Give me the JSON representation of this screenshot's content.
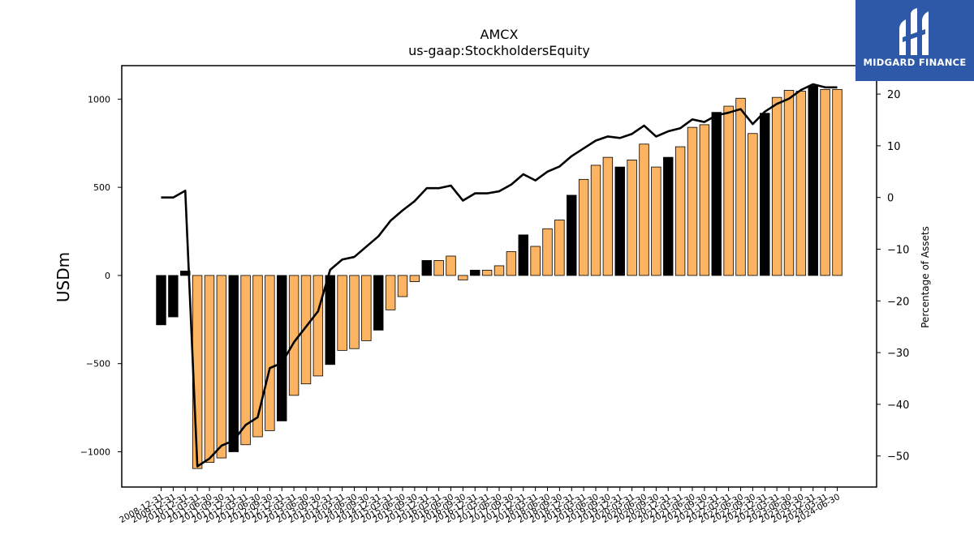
{
  "chart_data": {
    "type": "bar",
    "title": "AMCX",
    "subtitle": "us-gaap:StockholdersEquity",
    "ylabel": "USDm",
    "y2label": "Percentage of Assets",
    "ylim": [
      -1200,
      1190
    ],
    "y2lim": [
      -56,
      25.5
    ],
    "yticks": [
      -1000,
      -500,
      0,
      500,
      1000
    ],
    "y2ticks": [
      -50,
      -40,
      -30,
      -20,
      -10,
      0,
      10,
      20
    ],
    "grid": false,
    "colors": {
      "annual": "#000000",
      "quarterly": "#fdb462",
      "line": "#000000"
    },
    "categories": [
      "2008-12-31",
      "2009-12-31",
      "2010-12-31",
      "2011-03-31",
      "2011-06-30",
      "2011-09-30",
      "2011-12-31",
      "2012-03-31",
      "2012-06-30",
      "2012-09-30",
      "2012-12-31",
      "2013-03-31",
      "2013-06-30",
      "2013-09-30",
      "2013-12-31",
      "2014-03-31",
      "2014-06-30",
      "2014-09-30",
      "2014-12-31",
      "2015-03-31",
      "2015-06-30",
      "2015-09-30",
      "2015-12-31",
      "2016-03-31",
      "2016-06-30",
      "2016-09-30",
      "2016-12-31",
      "2017-03-31",
      "2017-06-30",
      "2017-09-30",
      "2017-12-31",
      "2018-03-31",
      "2018-06-30",
      "2018-09-30",
      "2018-12-31",
      "2019-03-31",
      "2019-06-30",
      "2019-09-30",
      "2019-12-31",
      "2020-03-31",
      "2020-06-30",
      "2020-09-30",
      "2020-12-31",
      "2021-03-31",
      "2021-06-30",
      "2021-09-30",
      "2021-12-31",
      "2022-03-31",
      "2022-06-30",
      "2022-09-30",
      "2022-12-31",
      "2023-03-31",
      "2023-06-30",
      "2023-09-30",
      "2023-12-31",
      "2024-03-31",
      "2024-06-30"
    ],
    "visible_tick_labels": [
      "2008-12-31",
      "2009-12-31",
      "2010-12-31",
      "2011-03-31",
      "2011-06-30",
      "2011-09-30",
      "2011-12-31",
      "2012-03-31",
      "2012-06-30",
      "2012-09-30",
      "2012-12-31",
      "2013-03-31",
      "2013-06-30",
      "2013-09-30",
      "2013-12-31",
      "2014-03-31",
      "2014-06-30",
      "2014-09-30",
      "2014-12-31",
      "2015-03-31",
      "2015-06-30",
      "2015-09-30",
      "2015-12-31",
      "2016-03-31",
      "2016-06-30",
      "2016-09-30",
      "2016-12-31",
      "2017-03-31",
      "2017-06-30",
      "2017-09-30",
      "2017-12-31",
      "2018-03-31",
      "2018-06-30",
      "2018-09-30",
      "2018-12-31",
      "2019-03-31",
      "2019-06-30",
      "2019-09-30",
      "2019-12-31",
      "2020-03-31",
      "2020-06-30",
      "2020-09-30",
      "2020-12-31",
      "2021-03-31",
      "2021-06-30",
      "2021-09-30",
      "2021-12-31",
      "2022-03-31",
      "2022-06-30",
      "2022-09-30",
      "2022-12-31",
      "2023-03-31",
      "2023-06-30",
      "2023-09-30",
      "2023-12-31",
      "2024-03-31",
      "2024-06-30"
    ],
    "bar_kind": [
      "A",
      "A",
      "A",
      "Q",
      "Q",
      "Q",
      "A",
      "Q",
      "Q",
      "Q",
      "A",
      "Q",
      "Q",
      "Q",
      "A",
      "Q",
      "Q",
      "Q",
      "A",
      "Q",
      "Q",
      "Q",
      "A",
      "Q",
      "Q",
      "Q",
      "A",
      "Q",
      "Q",
      "Q",
      "A",
      "Q",
      "Q",
      "Q",
      "A",
      "Q",
      "Q",
      "Q",
      "A",
      "Q",
      "Q",
      "Q",
      "A",
      "Q",
      "Q",
      "Q",
      "A",
      "Q",
      "Q",
      "Q",
      "A",
      "Q",
      "Q",
      "Q",
      "A",
      "Q",
      "Q"
    ],
    "series": [
      {
        "name": "StockholdersEquity",
        "axis": "left",
        "values": [
          -280,
          -235,
          25,
          -1095,
          -1060,
          -1035,
          -1000,
          -960,
          -915,
          -880,
          -825,
          -680,
          -615,
          -570,
          -505,
          -425,
          -415,
          -370,
          -310,
          -195,
          -120,
          -35,
          85,
          85,
          110,
          -25,
          30,
          30,
          55,
          135,
          230,
          165,
          265,
          315,
          455,
          545,
          625,
          670,
          615,
          655,
          745,
          615,
          670,
          730,
          840,
          855,
          925,
          960,
          1005,
          805,
          920,
          1010,
          1050,
          1045,
          1075,
          1055,
          1055
        ]
      },
      {
        "name": "Percentage of Assets",
        "axis": "right",
        "values": [
          0,
          0,
          1.3,
          -52,
          -50.5,
          -48,
          -47,
          -44,
          -42.5,
          -33,
          -32,
          -28,
          -25,
          -22,
          -14,
          -12,
          -11.5,
          -9.5,
          -7.5,
          -4.5,
          -2.5,
          -0.7,
          1.8,
          1.8,
          2.3,
          -0.6,
          0.8,
          0.8,
          1.2,
          2.5,
          4.5,
          3.3,
          5,
          6,
          8,
          9.5,
          11,
          11.8,
          11.5,
          12.3,
          13.9,
          11.8,
          12.8,
          13.4,
          15.1,
          14.6,
          15.9,
          16.4,
          17.1,
          14.2,
          16.6,
          18.1,
          19.1,
          20.8,
          21.9,
          21.3,
          21.3
        ]
      }
    ]
  },
  "logo": {
    "text": "MIDGARD FINANCE"
  }
}
